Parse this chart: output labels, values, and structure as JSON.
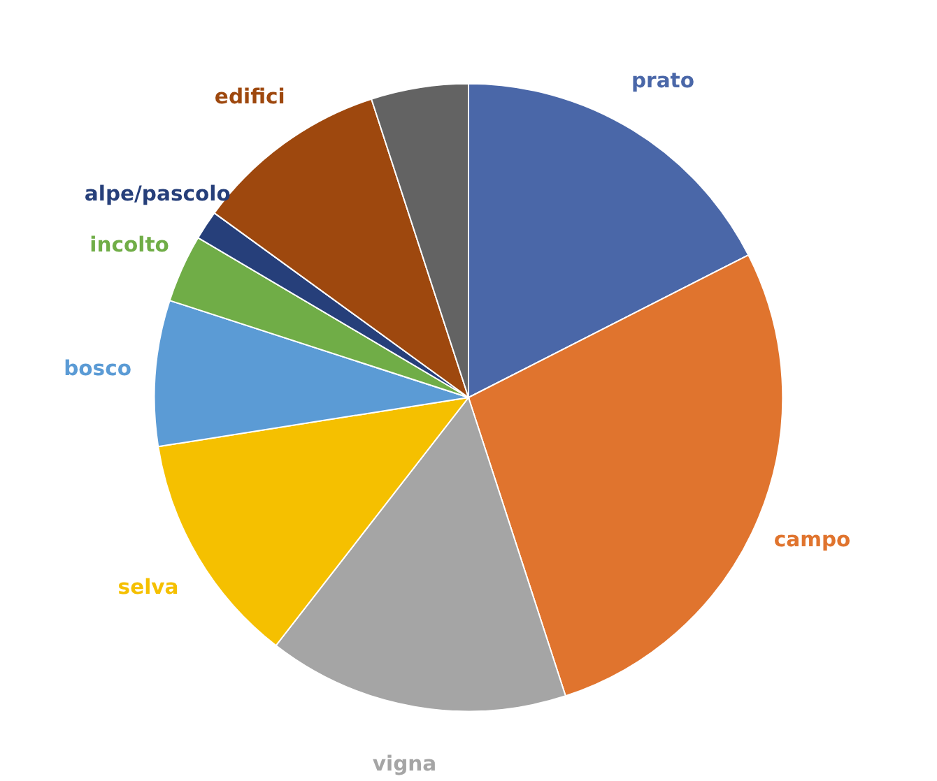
{
  "chart_data": {
    "type": "pie",
    "categories": [
      "prato",
      "campo",
      "vigna",
      "selva",
      "bosco",
      "incolto",
      "alpe/pascolo",
      "edifici",
      null
    ],
    "values": [
      17.5,
      27.5,
      15.5,
      12,
      7.5,
      3.5,
      1.5,
      10,
      5
    ],
    "colors": [
      "#4a67a8",
      "#e0742e",
      "#a5a5a5",
      "#f5c000",
      "#5b9bd5",
      "#70ad47",
      "#263f7a",
      "#9e480e",
      "#636363"
    ]
  }
}
